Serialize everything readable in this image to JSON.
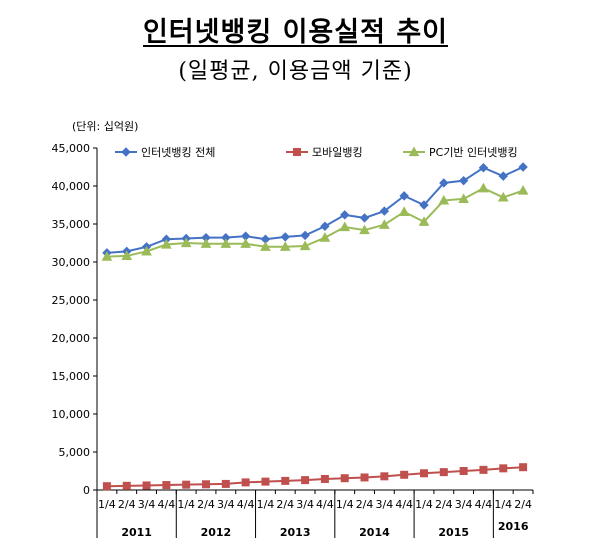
{
  "chart_data": {
    "type": "line",
    "title": "인터넷뱅킹 이용실적 추이",
    "subtitle": "(일평균, 이용금액 기준)",
    "unit_label": "(단위: 십억원)",
    "categories": [
      "1/4",
      "2/4",
      "3/4",
      "4/4",
      "1/4",
      "2/4",
      "3/4",
      "4/4",
      "1/4",
      "2/4",
      "3/4",
      "4/4",
      "1/4",
      "2/4",
      "3/4",
      "4/4",
      "1/4",
      "2/4",
      "3/4",
      "4/4",
      "1/4",
      "2/4"
    ],
    "years": [
      {
        "label": "2011",
        "start": 0,
        "end": 3
      },
      {
        "label": "2012",
        "start": 4,
        "end": 7
      },
      {
        "label": "2013",
        "start": 8,
        "end": 11
      },
      {
        "label": "2014",
        "start": 12,
        "end": 15
      },
      {
        "label": "2015",
        "start": 16,
        "end": 19
      },
      {
        "label": "2016",
        "start": 20,
        "end": 21
      }
    ],
    "ylim": [
      0,
      45000
    ],
    "ytick_values": [
      0,
      5000,
      10000,
      15000,
      20000,
      25000,
      30000,
      35000,
      40000,
      45000
    ],
    "ytick_labels": [
      "0",
      "5,000",
      "10,000",
      "15,000",
      "20,000",
      "25,000",
      "30,000",
      "35,000",
      "40,000",
      "45,000"
    ],
    "legend_position": "top",
    "series": [
      {
        "name": "인터넷뱅킹 전체",
        "color": "#4472C4",
        "marker": "diamond",
        "values": [
          31200,
          31400,
          32000,
          33000,
          33100,
          33200,
          33200,
          33400,
          33000,
          33300,
          33500,
          34700,
          36200,
          35800,
          36700,
          38700,
          37500,
          40400,
          40700,
          42400,
          41300,
          42500
        ]
      },
      {
        "name": "모바일뱅킹",
        "color": "#C0504D",
        "marker": "square",
        "values": [
          500,
          550,
          600,
          650,
          700,
          750,
          800,
          1000,
          1100,
          1200,
          1300,
          1450,
          1550,
          1650,
          1800,
          2000,
          2200,
          2350,
          2500,
          2650,
          2850,
          3000
        ]
      },
      {
        "name": "PC기반 인터넷뱅킹",
        "color": "#9BBB59",
        "marker": "triangle",
        "values": [
          30700,
          30800,
          31400,
          32300,
          32500,
          32400,
          32400,
          32400,
          32000,
          32000,
          32100,
          33200,
          34600,
          34200,
          34900,
          36600,
          35300,
          38100,
          38300,
          39700,
          38500,
          39400
        ]
      }
    ]
  }
}
